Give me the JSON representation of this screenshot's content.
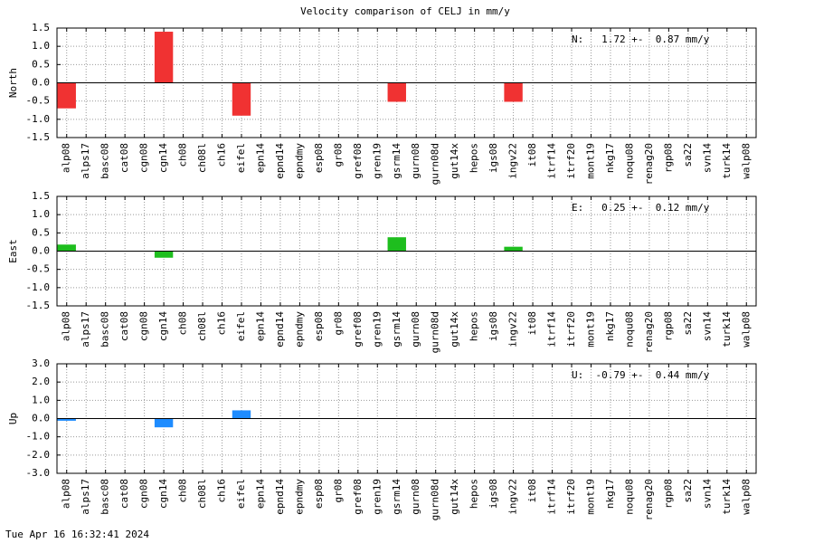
{
  "title": "Velocity comparison of CELJ in mm/y",
  "footer": "Tue Apr 16 16:32:41 2024",
  "chart_data": [
    {
      "type": "bar",
      "ylabel": "North",
      "annotation": "N:   1.72 +-  0.87 mm/y",
      "color": "#f03232",
      "categories": [
        "alp08",
        "alps17",
        "basc08",
        "cat08",
        "cgn08",
        "cgn14",
        "ch08",
        "ch08l",
        "ch16",
        "eifel",
        "epn14",
        "epnd14",
        "epndmy",
        "esp08",
        "gr08",
        "gref08",
        "gren19",
        "gsrm14",
        "gurn08",
        "gurn08d",
        "gut14x",
        "hepos",
        "igs08",
        "ingv22",
        "it08",
        "itrf14",
        "itrf20",
        "mont19",
        "nkg17",
        "noqu08",
        "renag20",
        "rgp08",
        "sa22",
        "svn14",
        "turk14",
        "walp08"
      ],
      "values": [
        -0.7,
        0,
        0,
        0,
        0,
        1.4,
        0,
        0,
        0,
        -0.9,
        0,
        0,
        0,
        0,
        0,
        0,
        0,
        -0.52,
        0,
        0,
        0,
        0,
        0,
        -0.52,
        0,
        0,
        0,
        0,
        0,
        0,
        0,
        0,
        0,
        0,
        0,
        0
      ],
      "ylim": [
        -1.5,
        1.5
      ],
      "yticks": [
        -1.5,
        {
          "value": -1,
          "label": "-1.0"
        },
        -0.5,
        {
          "value": 0,
          "label": "0.0"
        },
        0.5,
        {
          "value": 1,
          "label": "1.0"
        },
        1.5
      ],
      "grid": true
    },
    {
      "type": "bar",
      "ylabel": "East",
      "annotation": "E:   0.25 +-  0.12 mm/y",
      "color": "#1ebe1e",
      "categories": [
        "alp08",
        "alps17",
        "basc08",
        "cat08",
        "cgn08",
        "cgn14",
        "ch08",
        "ch08l",
        "ch16",
        "eifel",
        "epn14",
        "epnd14",
        "epndmy",
        "esp08",
        "gr08",
        "gref08",
        "gren19",
        "gsrm14",
        "gurn08",
        "gurn08d",
        "gut14x",
        "hepos",
        "igs08",
        "ingv22",
        "it08",
        "itrf14",
        "itrf20",
        "mont19",
        "nkg17",
        "noqu08",
        "renag20",
        "rgp08",
        "sa22",
        "svn14",
        "turk14",
        "walp08"
      ],
      "values": [
        0.18,
        0,
        0,
        0,
        0,
        -0.18,
        0,
        0,
        0,
        0,
        0,
        0,
        0,
        0,
        0,
        0,
        0,
        0.38,
        0,
        0,
        0,
        0,
        0,
        0.12,
        0,
        0,
        0,
        0,
        0,
        0,
        0,
        0,
        0,
        0,
        0,
        0
      ],
      "ylim": [
        -1.5,
        1.5
      ],
      "yticks": [
        -1.5,
        {
          "value": -1,
          "label": "-1.0"
        },
        -0.5,
        {
          "value": 0,
          "label": "0.0"
        },
        0.5,
        {
          "value": 1,
          "label": "1.0"
        },
        1.5
      ],
      "grid": true
    },
    {
      "type": "bar",
      "ylabel": "Up",
      "annotation": "U:  -0.79 +-  0.44 mm/y",
      "color": "#1e8cff",
      "categories": [
        "alp08",
        "alps17",
        "basc08",
        "cat08",
        "cgn08",
        "cgn14",
        "ch08",
        "ch08l",
        "ch16",
        "eifel",
        "epn14",
        "epnd14",
        "epndmy",
        "esp08",
        "gr08",
        "gref08",
        "gren19",
        "gsrm14",
        "gurn08",
        "gurn08d",
        "gut14x",
        "hepos",
        "igs08",
        "ingv22",
        "it08",
        "itrf14",
        "itrf20",
        "mont19",
        "nkg17",
        "noqu08",
        "renag20",
        "rgp08",
        "sa22",
        "svn14",
        "turk14",
        "walp08"
      ],
      "values": [
        -0.12,
        0,
        0,
        0,
        0,
        -0.48,
        0,
        0,
        0,
        0.45,
        0,
        0,
        0,
        0,
        0,
        0,
        0,
        0,
        0,
        0,
        0,
        0,
        0,
        0,
        0,
        0,
        0,
        0,
        0,
        0,
        0,
        0,
        0,
        0,
        0,
        0
      ],
      "ylim": [
        -3,
        3
      ],
      "yticks": [
        {
          "value": -3,
          "label": "-3.0"
        },
        {
          "value": -2,
          "label": "-2.0"
        },
        {
          "value": -1,
          "label": "-1.0"
        },
        {
          "value": 0,
          "label": "0.0"
        },
        {
          "value": 1,
          "label": "1.0"
        },
        {
          "value": 2,
          "label": "2.0"
        },
        {
          "value": 3,
          "label": "3.0"
        }
      ],
      "grid": true
    }
  ]
}
